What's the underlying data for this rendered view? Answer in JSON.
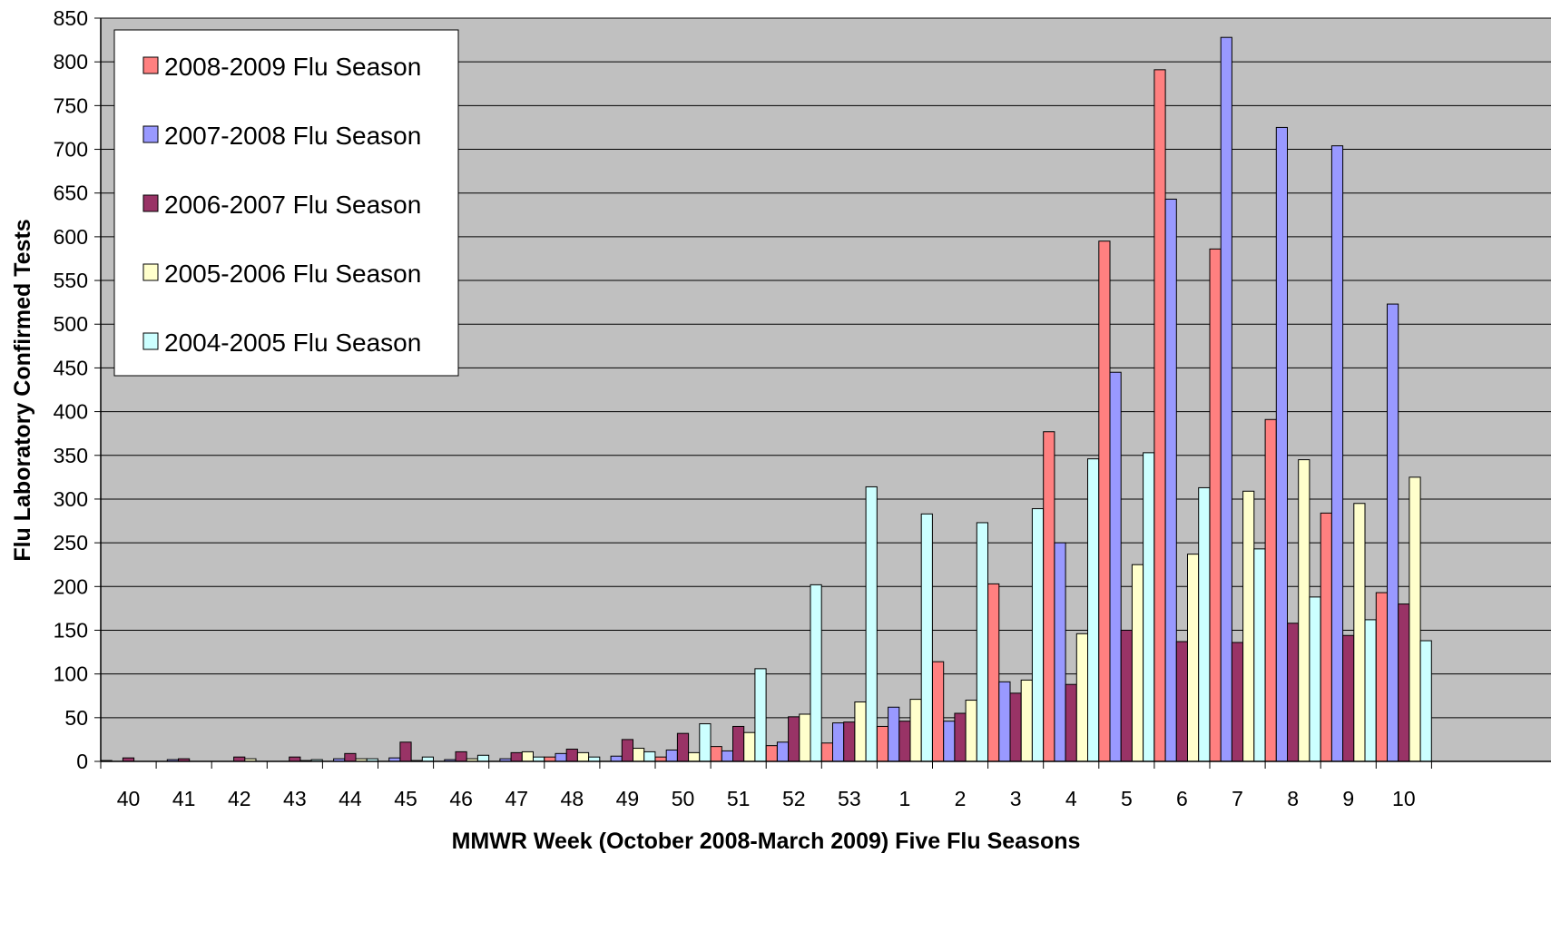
{
  "chart_data": {
    "type": "bar",
    "xlabel": "MMWR Week (October 2008-March 2009) Five Flu Seasons",
    "ylabel": "Flu Laboratory Confirmed Tests",
    "ylim": [
      0,
      850
    ],
    "y_ticks": [
      0,
      50,
      100,
      150,
      200,
      250,
      300,
      350,
      400,
      450,
      500,
      550,
      600,
      650,
      700,
      750,
      800,
      850
    ],
    "grid": true,
    "legend_position": "top-left",
    "categories": [
      "40",
      "41",
      "42",
      "43",
      "44",
      "45",
      "46",
      "47",
      "48",
      "49",
      "50",
      "51",
      "52",
      "53",
      "1",
      "2",
      "3",
      "4",
      "5",
      "6",
      "7",
      "8",
      "9",
      "10"
    ],
    "series": [
      {
        "name": "2008-2009 Flu Season",
        "color": "#ff8080",
        "values": [
          1,
          0,
          0,
          0,
          0,
          0,
          0,
          0,
          5,
          0,
          5,
          17,
          18,
          21,
          40,
          114,
          203,
          377,
          595,
          791,
          586,
          391,
          284,
          193
        ]
      },
      {
        "name": "2007-2008 Flu Season",
        "color": "#9999ff",
        "values": [
          0,
          2,
          0,
          0,
          3,
          4,
          2,
          3,
          9,
          6,
          13,
          12,
          22,
          44,
          62,
          46,
          91,
          250,
          445,
          643,
          828,
          725,
          704,
          523
        ]
      },
      {
        "name": "2006-2007 Flu Season",
        "color": "#993366",
        "values": [
          4,
          3,
          5,
          5,
          9,
          22,
          11,
          10,
          14,
          25,
          32,
          40,
          51,
          45,
          46,
          55,
          78,
          88,
          150,
          137,
          136,
          158,
          144,
          180
        ]
      },
      {
        "name": "2005-2006 Flu Season",
        "color": "#ffffcc",
        "values": [
          0,
          0,
          3,
          1,
          3,
          1,
          3,
          11,
          10,
          15,
          10,
          33,
          54,
          68,
          71,
          70,
          93,
          146,
          225,
          237,
          309,
          345,
          295,
          325
        ]
      },
      {
        "name": "2004-2005 Flu Season",
        "color": "#ccffff",
        "values": [
          0,
          0,
          0,
          2,
          3,
          5,
          7,
          5,
          5,
          11,
          43,
          106,
          202,
          314,
          283,
          273,
          289,
          346,
          353,
          313,
          243,
          188,
          162,
          138
        ]
      }
    ]
  }
}
